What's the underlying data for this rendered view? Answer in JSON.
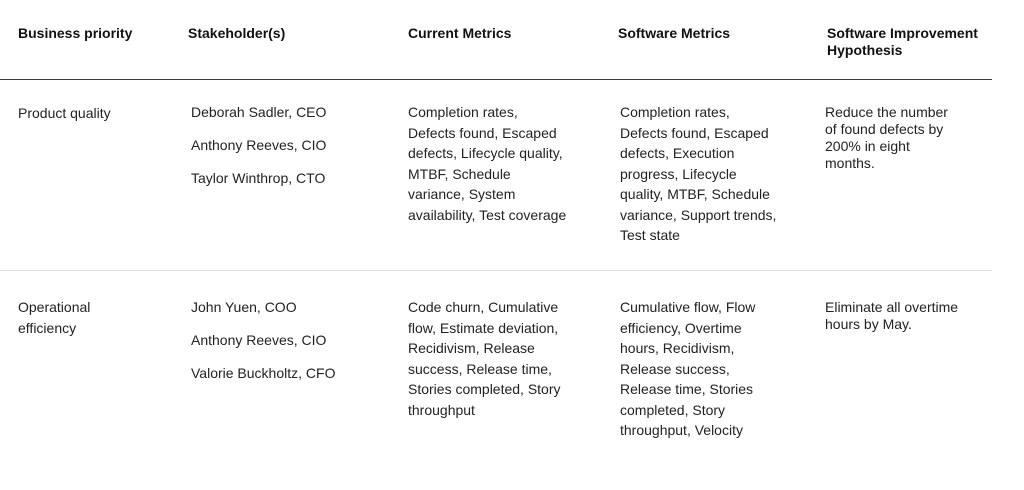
{
  "table": {
    "headers": [
      "Business priority",
      "Stakeholder(s)",
      "Current Metrics",
      "Software Metrics",
      "Software Improvement Hypothesis"
    ],
    "rows": [
      {
        "priority": "Product quality",
        "stakeholders": [
          "Deborah Sadler, CEO",
          "Anthony Reeves, CIO",
          "Taylor Winthrop, CTO"
        ],
        "current_metrics": "Completion rates, Defects found, Escaped defects, Lifecycle quality, MTBF, Schedule variance, System availability, Test coverage",
        "software_metrics": "Completion rates, Defects found, Escaped defects, Execution progress, Lifecycle quality, MTBF, Schedule variance, Support trends, Test state",
        "hypothesis": "Reduce the number of found defects by 200% in eight months."
      },
      {
        "priority": "Operational efficiency",
        "stakeholders": [
          "John Yuen, COO",
          "Anthony Reeves, CIO",
          "Valorie Buckholtz, CFO"
        ],
        "current_metrics": "Code churn, Cumulative flow, Estimate deviation, Recidivism, Release success, Release time, Stories completed, Story throughput",
        "software_metrics": "Cumulative flow, Flow efficiency, Overtime hours, Recidivism, Release success, Release time, Stories completed, Story throughput, Velocity",
        "hypothesis": "Eliminate all overtime hours by May."
      }
    ]
  }
}
